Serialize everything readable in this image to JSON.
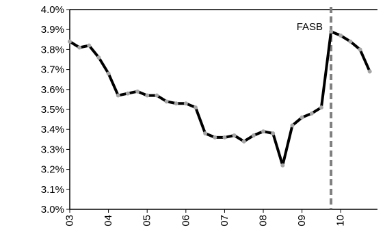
{
  "chart_data": {
    "type": "line",
    "title": "",
    "xlabel": "",
    "ylabel": "",
    "ylim": [
      0.03,
      0.04
    ],
    "yticks": [
      "4.0%",
      "3.9%",
      "3.8%",
      "3.7%",
      "3.6%",
      "3.5%",
      "3.4%",
      "3.3%",
      "3.2%",
      "3.1%",
      "3.0%"
    ],
    "xticks": [
      "03",
      "04",
      "05",
      "06",
      "07",
      "08",
      "09",
      "10"
    ],
    "grid": false,
    "legend": "none",
    "series": [
      {
        "color": "#000000",
        "marker_color": "#a6a6a6",
        "x": [
          2003.0,
          2003.25,
          2003.5,
          2003.75,
          2004.0,
          2004.25,
          2004.5,
          2004.75,
          2005.0,
          2005.25,
          2005.5,
          2005.75,
          2006.0,
          2006.25,
          2006.5,
          2006.75,
          2007.0,
          2007.25,
          2007.5,
          2007.75,
          2008.0,
          2008.25,
          2008.5,
          2008.75,
          2009.0,
          2009.25,
          2009.5,
          2009.75,
          2010.0,
          2010.25,
          2010.5,
          2010.75
        ],
        "values": [
          0.0384,
          0.0381,
          0.0382,
          0.0376,
          0.0368,
          0.0357,
          0.0358,
          0.0359,
          0.0357,
          0.0357,
          0.0354,
          0.0353,
          0.0353,
          0.0351,
          0.0338,
          0.0336,
          0.0336,
          0.0337,
          0.0334,
          0.0337,
          0.0339,
          0.0338,
          0.0322,
          0.0342,
          0.0346,
          0.0348,
          0.0351,
          0.0389,
          0.0387,
          0.0384,
          0.038,
          0.0369
        ]
      }
    ],
    "annotations": [
      {
        "text": "FASB",
        "x": 2009.75,
        "line_color": "#808080",
        "line_style": "dashed"
      }
    ]
  }
}
